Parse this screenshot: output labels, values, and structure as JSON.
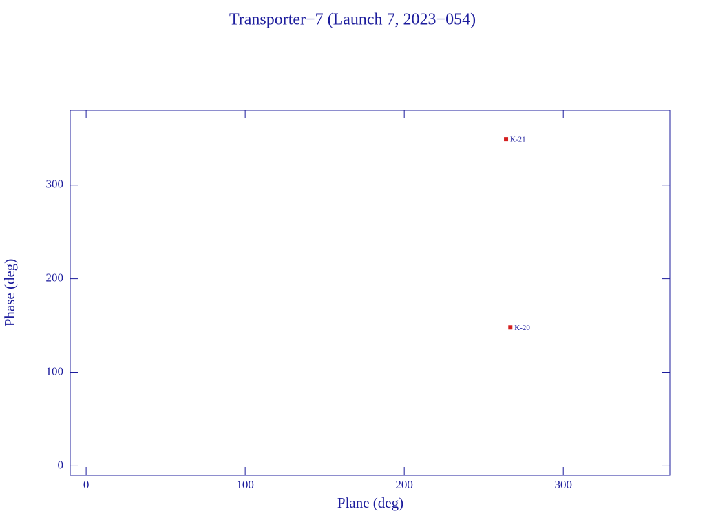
{
  "chart_data": {
    "type": "scatter",
    "title": "Transporter−7 (Launch 7, 2023−054)",
    "x_label": "Plane (deg)",
    "y_label": "Phase (deg)",
    "series": [
      {
        "name": null,
        "color": "#d42020",
        "x": [
          264,
          266.7
        ],
        "values": [
          349,
          148
        ],
        "point_labels": [
          "K-21",
          "K-20"
        ]
      }
    ],
    "xlim": [
      -10,
      367
    ],
    "ylim": [
      -10,
      380
    ],
    "xticks": [
      0,
      100,
      200,
      300
    ],
    "yticks": [
      0,
      100,
      200,
      300
    ],
    "axis_color": "#1c1c9c"
  }
}
